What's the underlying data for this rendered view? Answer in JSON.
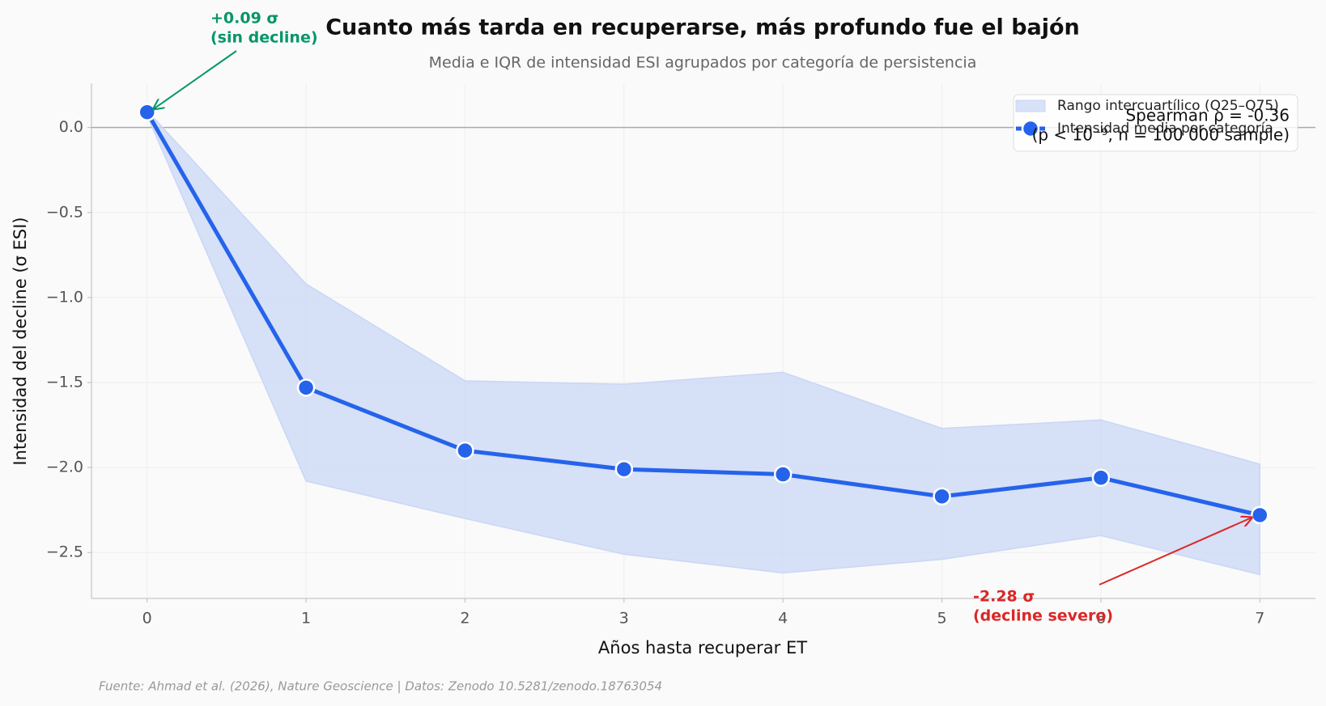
{
  "chart_data": {
    "type": "line",
    "title": "Cuanto más tarda en recuperarse, más profundo fue el bajón",
    "subtitle": "Media e IQR de intensidad ESI agrupados por categoría de persistencia",
    "x_label": "Años hasta recuperar ET",
    "y_label": "Intensidad del decline (σ ESI)",
    "x": [
      0,
      1,
      2,
      3,
      4,
      5,
      6,
      7
    ],
    "series": [
      {
        "name": "Intensidad media por categoría",
        "color": "#2563eb",
        "values": [
          0.09,
          -1.53,
          -1.9,
          -2.01,
          -2.04,
          -2.17,
          -2.06,
          -2.28
        ]
      }
    ],
    "band": {
      "name": "Rango intercuartílico (Q25–Q75)",
      "color": "#c9d7f6",
      "lower": [
        0.07,
        -2.08,
        -2.3,
        -2.51,
        -2.62,
        -2.54,
        -2.4,
        -2.63
      ],
      "upper": [
        0.1,
        -0.92,
        -1.49,
        -1.51,
        -1.44,
        -1.77,
        -1.72,
        -1.98
      ]
    },
    "hline": 0,
    "xlim": [
      -0.35,
      7.35
    ],
    "ylim": [
      -2.77,
      0.26
    ],
    "xticks": [
      0,
      1,
      2,
      3,
      4,
      5,
      6,
      7
    ],
    "yticks": [
      {
        "value": 0,
        "label": "0.0"
      },
      {
        "value": -0.5,
        "label": "−0.5"
      },
      {
        "value": -1,
        "label": "−1.0"
      },
      {
        "value": -1.5,
        "label": "−1.5"
      },
      {
        "value": -2,
        "label": "−2.0"
      },
      {
        "value": -2.5,
        "label": "−2.5"
      }
    ],
    "grid": true,
    "legend": "upper right",
    "annotations": [
      {
        "lines": [
          "+0.09 σ",
          "(sin decline)"
        ],
        "color": "#059669"
      },
      {
        "lines": [
          "-2.28 σ",
          "(decline severo)"
        ],
        "color": "#dc2626"
      }
    ],
    "stats_text": [
      "Spearman ρ = -0.36",
      "(p < 10⁻⁹, n = 100 000 sample)"
    ],
    "source": "Fuente: Ahmad et al. (2026), Nature Geoscience | Datos: Zenodo 10.5281/zenodo.18763054"
  }
}
